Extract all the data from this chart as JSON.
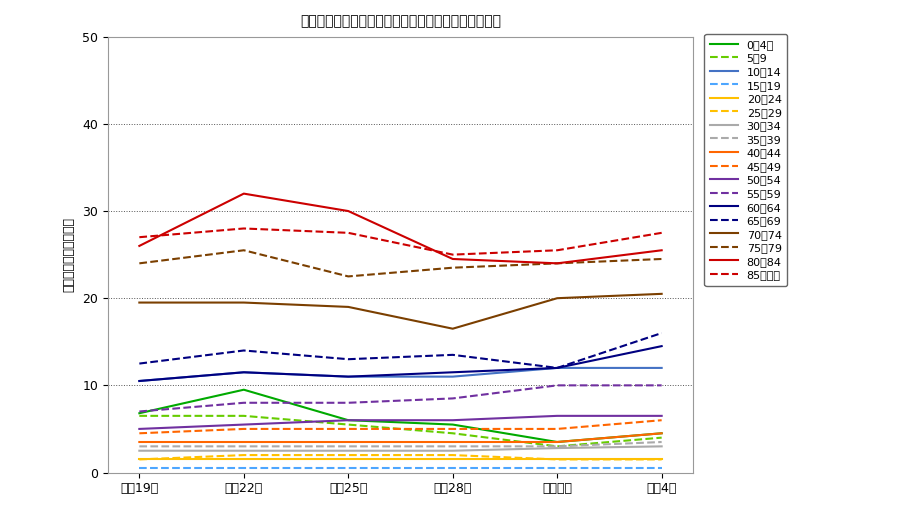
{
  "title": "その他の呼吸系疾患の年齢階級別通院者率の経年変化",
  "xlabel_ticks": [
    "平成19年",
    "平成22年",
    "平成25年",
    "平成28年",
    "令和元年",
    "令和4年"
  ],
  "ylabel": "通院者率（人口千対）",
  "ylim": [
    0,
    50
  ],
  "yticks": [
    0,
    10,
    20,
    30,
    40,
    50
  ],
  "series": [
    {
      "label": "0〄4歳",
      "color": "#00aa00",
      "style": "solid",
      "data": [
        6.8,
        9.5,
        6.0,
        5.5,
        3.5,
        4.5
      ]
    },
    {
      "label": "5〄9",
      "color": "#66cc00",
      "style": "dashed",
      "data": [
        6.5,
        6.5,
        5.5,
        4.5,
        3.0,
        4.0
      ]
    },
    {
      "label": "10぀14",
      "color": "#4472c4",
      "style": "solid",
      "data": [
        10.5,
        11.5,
        11.0,
        11.0,
        12.0,
        12.0
      ]
    },
    {
      "label": "15぀19",
      "color": "#4da6ff",
      "style": "dashed",
      "data": [
        0.5,
        0.5,
        0.5,
        0.5,
        0.5,
        0.5
      ]
    },
    {
      "label": "20぀24",
      "color": "#ffc000",
      "style": "solid",
      "data": [
        1.5,
        1.5,
        1.5,
        1.5,
        1.5,
        1.5
      ]
    },
    {
      "label": "25぀29",
      "color": "#ffc000",
      "style": "dashed",
      "data": [
        1.5,
        2.0,
        2.0,
        2.0,
        1.5,
        1.5
      ]
    },
    {
      "label": "30぀34",
      "color": "#aaaaaa",
      "style": "solid",
      "data": [
        2.5,
        2.5,
        2.5,
        2.5,
        2.8,
        3.0
      ]
    },
    {
      "label": "35぀39",
      "color": "#aaaaaa",
      "style": "dashed",
      "data": [
        3.0,
        3.0,
        3.0,
        3.0,
        3.0,
        3.5
      ]
    },
    {
      "label": "40぀44",
      "color": "#ff6600",
      "style": "solid",
      "data": [
        3.5,
        3.5,
        3.5,
        3.5,
        3.5,
        4.5
      ]
    },
    {
      "label": "45぀49",
      "color": "#ff6600",
      "style": "dashed",
      "data": [
        4.5,
        5.0,
        5.0,
        5.0,
        5.0,
        6.0
      ]
    },
    {
      "label": "50぀54",
      "color": "#7030a0",
      "style": "solid",
      "data": [
        5.0,
        5.5,
        6.0,
        6.0,
        6.5,
        6.5
      ]
    },
    {
      "label": "55぀59",
      "color": "#7030a0",
      "style": "dashed",
      "data": [
        7.0,
        8.0,
        8.0,
        8.5,
        10.0,
        10.0
      ]
    },
    {
      "label": "60぀64",
      "color": "#000080",
      "style": "solid",
      "data": [
        10.5,
        11.5,
        11.0,
        11.5,
        12.0,
        14.5
      ]
    },
    {
      "label": "65぀69",
      "color": "#000080",
      "style": "dashed",
      "data": [
        12.5,
        14.0,
        13.0,
        13.5,
        12.0,
        16.0
      ]
    },
    {
      "label": "70぀74",
      "color": "#7b3f00",
      "style": "solid",
      "data": [
        19.5,
        19.5,
        19.0,
        16.5,
        20.0,
        20.5
      ]
    },
    {
      "label": "75぀79",
      "color": "#7b3f00",
      "style": "dashed",
      "data": [
        24.0,
        25.5,
        22.5,
        23.5,
        24.0,
        24.5
      ]
    },
    {
      "label": "80぀84",
      "color": "#cc0000",
      "style": "solid",
      "data": [
        26.0,
        32.0,
        30.0,
        24.5,
        24.0,
        25.5
      ]
    },
    {
      "label": "85歳以上",
      "color": "#cc0000",
      "style": "dashed",
      "data": [
        27.0,
        28.0,
        27.5,
        25.0,
        25.5,
        27.5
      ]
    }
  ],
  "background_color": "#ffffff",
  "grid_color": "#333333",
  "figsize": [
    9.0,
    5.25
  ],
  "dpi": 100
}
